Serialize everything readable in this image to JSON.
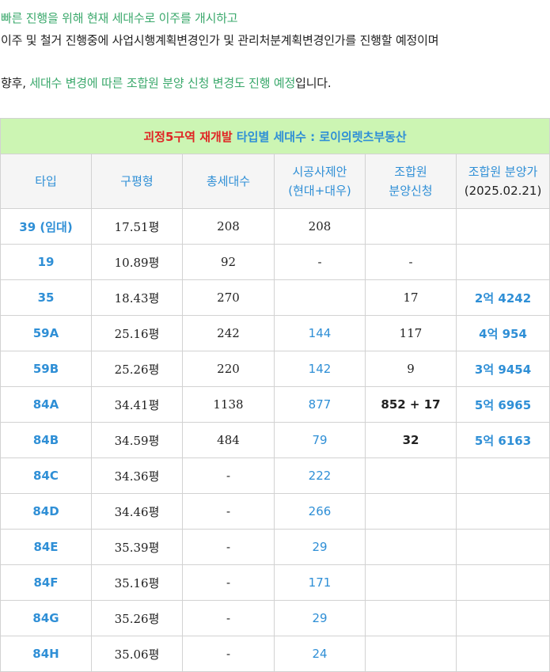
{
  "intro": {
    "line1": "빠른 진행을 위해 현재 세대수로 이주를 개시하고",
    "line2": "이주 및 철거 진행중에 사업시행계획변경인가 및 관리처분계획변경인가를 진행할 예정이며",
    "line3_pre": "향후, ",
    "line3_green": "세대수 변경에 따른 조합원 분양 신청 변경도 진행 예정",
    "line3_post": "입니다."
  },
  "table": {
    "title_red": "괴정5구역 재개발",
    "title_blue": " 타입별 세대수 : 로이의렛츠부동산",
    "headers": {
      "type": "타입",
      "pyeong": "구평형",
      "total": "총세대수",
      "proposal_1": "시공사제안",
      "proposal_2": "(현대+대우)",
      "member_1": "조합원",
      "member_2": "분양신청",
      "price_1": "조합원 분양가",
      "price_2": "(2025.02.21)"
    },
    "rows": [
      {
        "type": "39 (임대)",
        "pyeong": "17.51평",
        "total": "208",
        "proposal": "208",
        "member": "",
        "price": ""
      },
      {
        "type": "19",
        "pyeong": "10.89평",
        "total": "92",
        "proposal": "-",
        "member": "-",
        "price": ""
      },
      {
        "type": "35",
        "pyeong": "18.43평",
        "total": "270",
        "proposal": "",
        "member": "17",
        "price": "2억 4242"
      },
      {
        "type": "59A",
        "pyeong": "25.16평",
        "total": "242",
        "proposal": "144",
        "member": "117",
        "price": "4억 954"
      },
      {
        "type": "59B",
        "pyeong": "25.26평",
        "total": "220",
        "proposal": "142",
        "member": "9",
        "price": "3억 9454"
      },
      {
        "type": "84A",
        "pyeong": "34.41평",
        "total": "1138",
        "proposal": "877",
        "member": "852 + 17",
        "price": "5억 6965"
      },
      {
        "type": "84B",
        "pyeong": "34.59평",
        "total": "484",
        "proposal": "79",
        "member": "32",
        "price": "5억 6163"
      },
      {
        "type": "84C",
        "pyeong": "34.36평",
        "total": "-",
        "proposal": "222",
        "member": "",
        "price": ""
      },
      {
        "type": "84D",
        "pyeong": "34.46평",
        "total": "-",
        "proposal": "266",
        "member": "",
        "price": ""
      },
      {
        "type": "84E",
        "pyeong": "35.39평",
        "total": "-",
        "proposal": "29",
        "member": "",
        "price": ""
      },
      {
        "type": "84F",
        "pyeong": "35.16평",
        "total": "-",
        "proposal": "171",
        "member": "",
        "price": ""
      },
      {
        "type": "84G",
        "pyeong": "35.26평",
        "total": "-",
        "proposal": "29",
        "member": "",
        "price": ""
      },
      {
        "type": "84H",
        "pyeong": "35.06평",
        "total": "-",
        "proposal": "24",
        "member": "",
        "price": ""
      }
    ]
  }
}
